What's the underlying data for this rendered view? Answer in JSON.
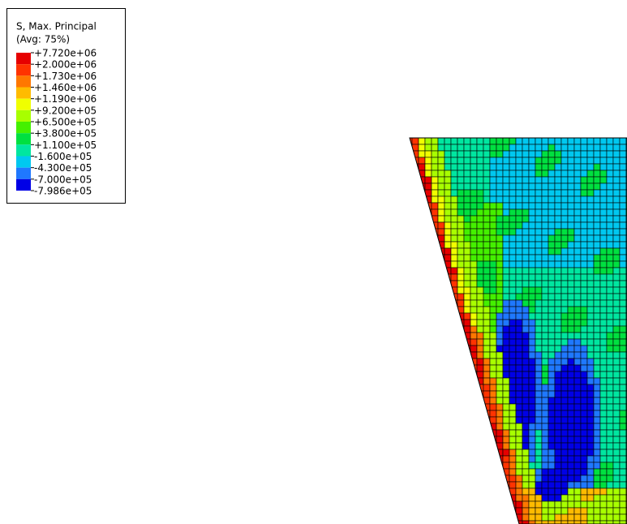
{
  "legend": {
    "title": "S, Max. Principal",
    "subtitle": "(Avg: 75%)",
    "labels": [
      "+7.720e+06",
      "+2.000e+06",
      "+1.730e+06",
      "+1.460e+06",
      "+1.190e+06",
      "+9.200e+05",
      "+6.500e+05",
      "+3.800e+05",
      "+1.100e+05",
      "-1.600e+05",
      "-4.300e+05",
      "-7.000e+05",
      "-7.986e+05"
    ]
  }
}
